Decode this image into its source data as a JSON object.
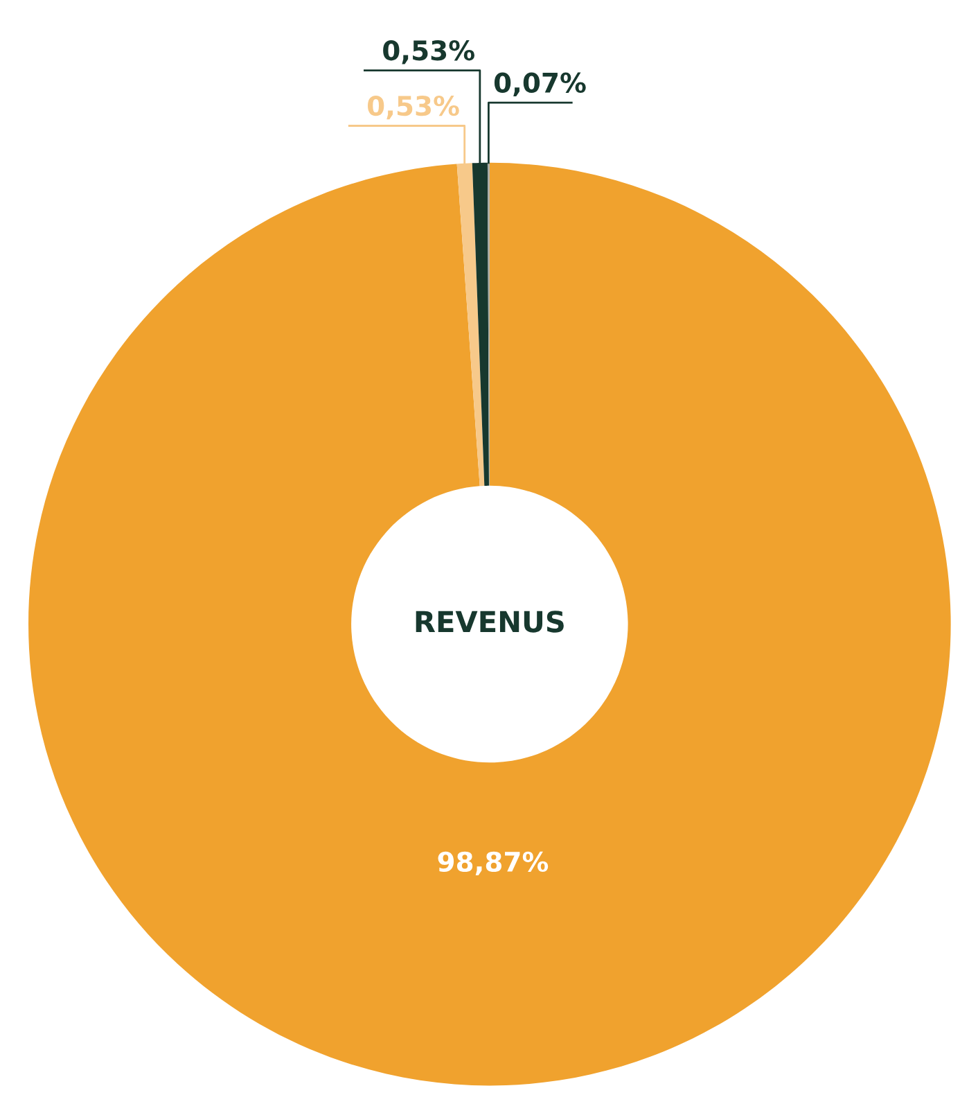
{
  "chart_data": {
    "type": "donut",
    "title": "REVENUS",
    "categories": [
      null,
      null,
      null,
      null
    ],
    "values": [
      98.87,
      0.53,
      0.53,
      0.07
    ],
    "value_labels": [
      "98,87%",
      "0,53%",
      "0,53%",
      "0,07%"
    ],
    "colors": [
      "#f0a22e",
      "#f7c98a",
      "#17382e",
      "#a9aba5"
    ],
    "legend": false
  }
}
